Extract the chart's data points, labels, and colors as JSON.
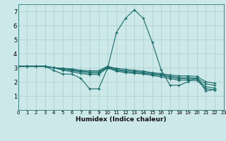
{
  "xlabel": "Humidex (Indice chaleur)",
  "xlim": [
    0,
    23
  ],
  "ylim": [
    0,
    7.5
  ],
  "xticks": [
    0,
    1,
    2,
    3,
    4,
    5,
    6,
    7,
    8,
    9,
    10,
    11,
    12,
    13,
    14,
    15,
    16,
    17,
    18,
    19,
    20,
    21,
    22,
    23
  ],
  "yticks": [
    1,
    2,
    3,
    4,
    5,
    6,
    7
  ],
  "bg_color": "#cce8e8",
  "grid_color": "#aacccc",
  "line_color": "#1a6b6b",
  "lines": [
    [
      3.1,
      3.1,
      3.1,
      3.1,
      2.8,
      2.55,
      2.55,
      2.25,
      1.5,
      1.5,
      2.95,
      5.5,
      6.5,
      7.1,
      6.5,
      4.8,
      2.85,
      1.75,
      1.75,
      2.0,
      2.3,
      1.35,
      1.45
    ],
    [
      3.1,
      3.1,
      3.1,
      3.1,
      3.0,
      2.82,
      2.72,
      2.58,
      2.52,
      2.52,
      2.98,
      2.75,
      2.65,
      2.6,
      2.55,
      2.45,
      2.35,
      2.22,
      2.12,
      2.12,
      2.08,
      1.52,
      1.42
    ],
    [
      3.1,
      3.1,
      3.1,
      3.1,
      3.0,
      2.88,
      2.8,
      2.68,
      2.62,
      2.62,
      3.02,
      2.82,
      2.72,
      2.67,
      2.62,
      2.52,
      2.45,
      2.32,
      2.22,
      2.22,
      2.18,
      1.65,
      1.55
    ],
    [
      3.1,
      3.1,
      3.1,
      3.1,
      3.0,
      2.93,
      2.87,
      2.75,
      2.7,
      2.7,
      3.07,
      2.88,
      2.8,
      2.74,
      2.68,
      2.58,
      2.52,
      2.4,
      2.3,
      2.3,
      2.25,
      1.85,
      1.75
    ],
    [
      3.1,
      3.1,
      3.1,
      3.1,
      3.0,
      2.96,
      2.91,
      2.82,
      2.78,
      2.78,
      3.1,
      2.95,
      2.88,
      2.82,
      2.76,
      2.65,
      2.58,
      2.48,
      2.42,
      2.42,
      2.38,
      2.0,
      1.9
    ]
  ]
}
